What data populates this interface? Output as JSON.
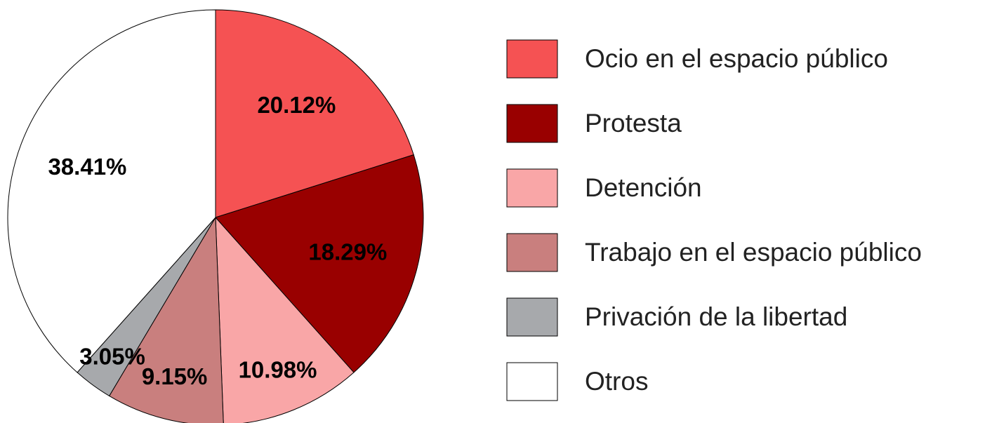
{
  "chart_data": {
    "type": "pie",
    "categories": [
      "Ocio en el espacio público",
      "Protesta",
      "Detención",
      "Trabajo en el espacio público",
      "Privación de la libertad",
      "Otros"
    ],
    "values": [
      20.12,
      18.29,
      10.98,
      9.15,
      3.05,
      38.41
    ],
    "value_labels": [
      "20.12%",
      "18.29%",
      "10.98%",
      "9.15%",
      "3.05%",
      "38.41%"
    ],
    "colors": [
      "#f55253",
      "#990000",
      "#f9a6a7",
      "#c97f7e",
      "#a7a9ac",
      "#ffffff"
    ],
    "legend": "right"
  }
}
